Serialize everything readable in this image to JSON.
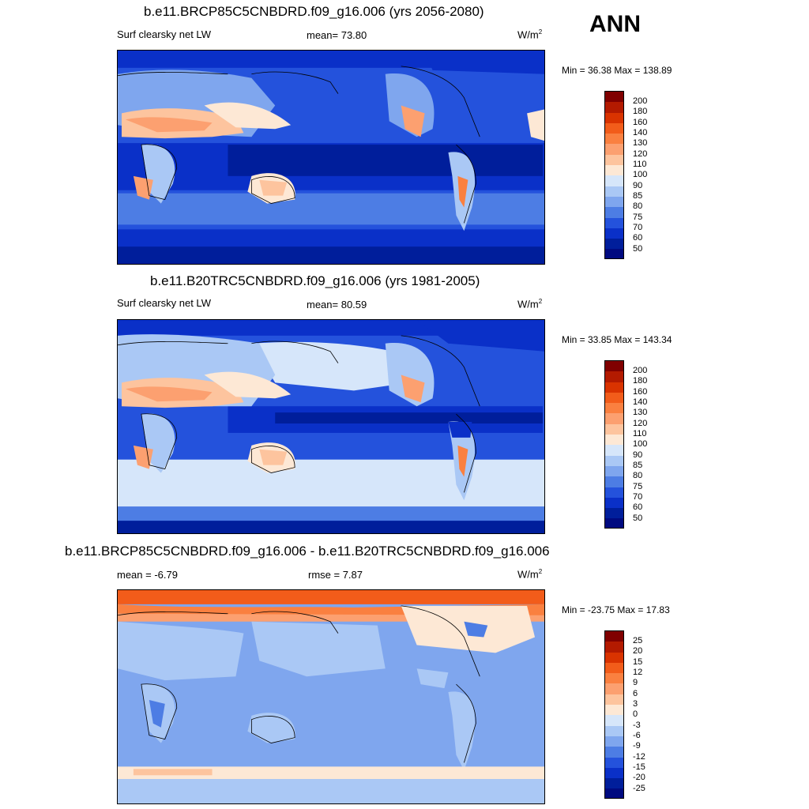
{
  "season": "ANN",
  "panels": [
    {
      "title": "b.e11.BRCP85C5CNBDRD.f09_g16.006 (yrs 2056-2080)",
      "left_label": "Surf clearsky net LW",
      "mean_label": "mean=  73.80",
      "units_base": "W/m",
      "units_exp": "2",
      "minmax": "Min =  36.38 Max = 138.89",
      "colorbar_labels": [
        "200",
        "180",
        "160",
        "140",
        "130",
        "120",
        "110",
        "100",
        "90",
        "85",
        "80",
        "75",
        "70",
        "60",
        "50"
      ],
      "map_icon": "world-map-filled-contour"
    },
    {
      "title": "b.e11.B20TRC5CNBDRD.f09_g16.006 (yrs 1981-2005)",
      "left_label": "Surf clearsky net LW",
      "mean_label": "mean=  80.59",
      "units_base": "W/m",
      "units_exp": "2",
      "minmax": "Min =  33.85 Max = 143.34",
      "colorbar_labels": [
        "200",
        "180",
        "160",
        "140",
        "130",
        "120",
        "110",
        "100",
        "90",
        "85",
        "80",
        "75",
        "70",
        "60",
        "50"
      ],
      "map_icon": "world-map-filled-contour"
    },
    {
      "title": "b.e11.BRCP85C5CNBDRD.f09_g16.006 - b.e11.B20TRC5CNBDRD.f09_g16.006",
      "left_label": "mean =  -6.79",
      "mean_label": "rmse =   7.87",
      "units_base": "W/m",
      "units_exp": "2",
      "minmax": "Min = -23.75 Max =  17.83",
      "colorbar_labels": [
        "25",
        "20",
        "15",
        "12",
        "9",
        "6",
        "3",
        "0",
        "-3",
        "-6",
        "-9",
        "-12",
        "-15",
        "-20",
        "-25"
      ],
      "map_icon": "world-map-difference-contour"
    }
  ],
  "colorbar_colors": [
    "#800000",
    "#b31a00",
    "#d93300",
    "#f25c1a",
    "#fa8040",
    "#fca070",
    "#fdc49e",
    "#fde8d5",
    "#d6e6fa",
    "#aac8f5",
    "#7fa6ee",
    "#4d7de4",
    "#2452dc",
    "#0a30c8",
    "#001e9b",
    "#000a80"
  ]
}
